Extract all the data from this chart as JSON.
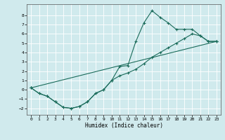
{
  "xlabel": "Humidex (Indice chaleur)",
  "bg_color": "#d0eaed",
  "line_color": "#1a6b5a",
  "xlim": [
    -0.5,
    23.5
  ],
  "ylim": [
    -2.7,
    9.2
  ],
  "yticks": [
    -2,
    -1,
    0,
    1,
    2,
    3,
    4,
    5,
    6,
    7,
    8
  ],
  "xticks": [
    0,
    1,
    2,
    3,
    4,
    5,
    6,
    7,
    8,
    9,
    10,
    11,
    12,
    13,
    14,
    15,
    16,
    17,
    18,
    19,
    20,
    21,
    22,
    23
  ],
  "line1_x": [
    0,
    1,
    2,
    3,
    4,
    5,
    6,
    7,
    8,
    9,
    10,
    11,
    12,
    13,
    14,
    15,
    16,
    17,
    18,
    19,
    20,
    21,
    22,
    23
  ],
  "line1_y": [
    0.2,
    -0.4,
    -0.7,
    -1.3,
    -1.9,
    -2.0,
    -1.8,
    -1.3,
    -0.4,
    0.0,
    1.0,
    2.5,
    2.6,
    5.2,
    7.2,
    8.5,
    7.8,
    7.2,
    6.5,
    6.5,
    6.5,
    5.8,
    5.2,
    5.2
  ],
  "line2_x": [
    0,
    1,
    2,
    3,
    4,
    5,
    6,
    7,
    8,
    9,
    10,
    11,
    12,
    13,
    14,
    15,
    16,
    17,
    18,
    19,
    20,
    21,
    22,
    23
  ],
  "line2_y": [
    0.2,
    -0.4,
    -0.7,
    -1.3,
    -1.9,
    -2.0,
    -1.8,
    -1.3,
    -0.4,
    0.0,
    1.0,
    1.5,
    1.8,
    2.2,
    2.8,
    3.5,
    4.0,
    4.5,
    5.0,
    5.5,
    6.0,
    5.8,
    5.2,
    5.2
  ],
  "line3_x": [
    0,
    23
  ],
  "line3_y": [
    0.2,
    5.2
  ]
}
